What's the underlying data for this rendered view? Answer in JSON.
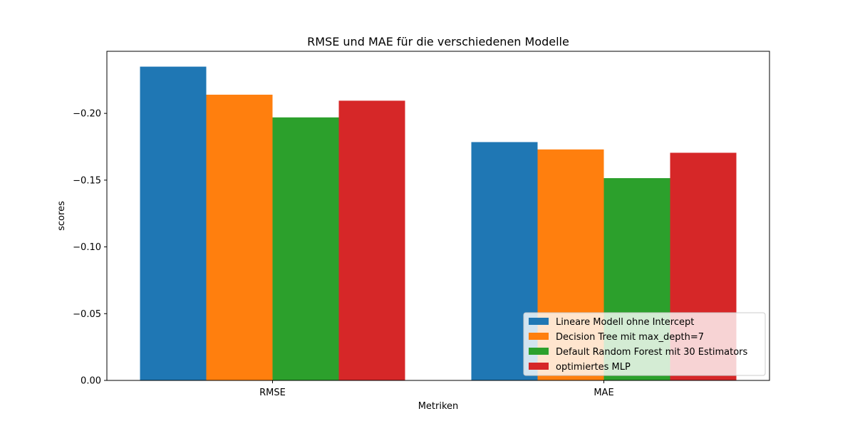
{
  "chart_data": {
    "type": "bar",
    "title": "RMSE und MAE für die verschiedenen Modelle",
    "xlabel": "Metriken",
    "ylabel": "scores",
    "categories": [
      "RMSE",
      "MAE"
    ],
    "ylim": [
      0.0,
      -0.2465
    ],
    "y_inverted": true,
    "yticks": [
      0.0,
      -0.05,
      -0.1,
      -0.15,
      -0.2
    ],
    "ytick_labels": [
      "0.00",
      "−0.05",
      "−0.10",
      "−0.15",
      "−0.20"
    ],
    "grid": false,
    "legend_position": "lower right",
    "series": [
      {
        "name": "Lineare Modell ohne Intercept",
        "color": "#1f77b4",
        "values": [
          -0.235,
          -0.1785
        ]
      },
      {
        "name": "Decision Tree mit max_depth=7",
        "color": "#ff7f0e",
        "values": [
          -0.214,
          -0.173
        ]
      },
      {
        "name": "Default Random Forest mit 30 Estimators",
        "color": "#2ca02c",
        "values": [
          -0.197,
          -0.1515
        ]
      },
      {
        "name": "optimiertes MLP",
        "color": "#d62728",
        "values": [
          -0.2095,
          -0.1705
        ]
      }
    ]
  }
}
